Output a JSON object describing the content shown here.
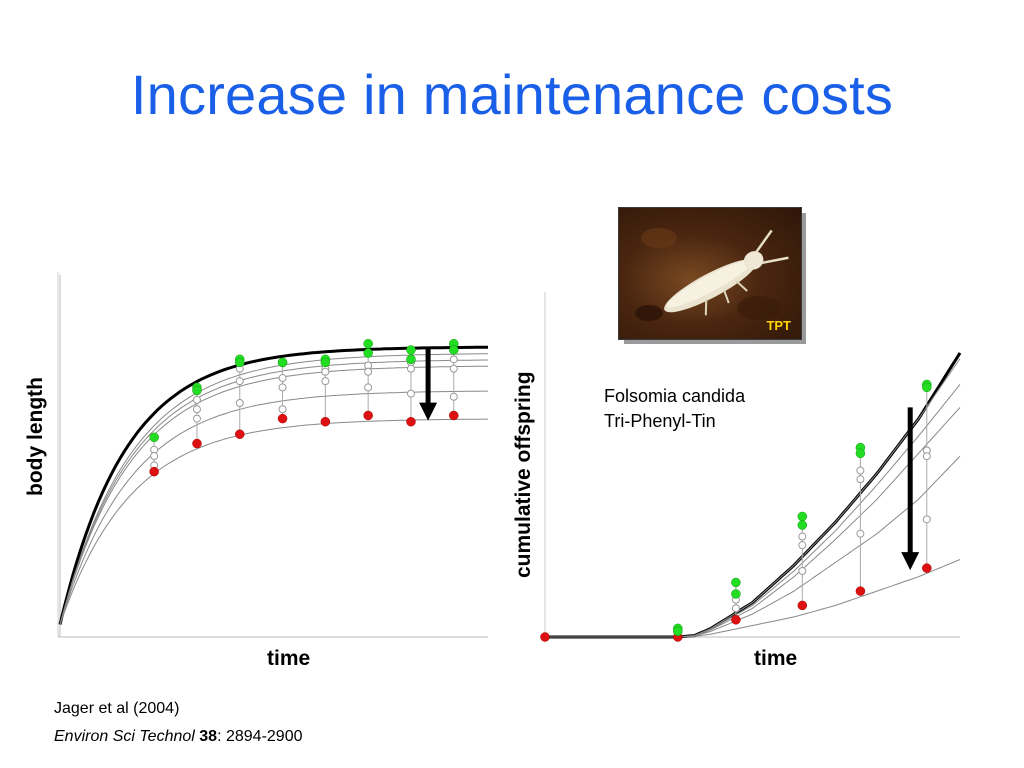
{
  "slide": {
    "title": "Increase in maintenance costs",
    "info_line1": "Folsomia candida",
    "info_line2": "Tri-Phenyl-Tin",
    "photo_label": "TPT",
    "citation_authors": "Jager et al (2004)",
    "citation_journal": "Environ Sci Technol",
    "citation_volume": "38",
    "citation_pages": ": 2894-2900",
    "colors": {
      "title": "#1a5fe8",
      "control": "#22dd22",
      "highest_dose": "#dd1111",
      "open_marker": "#ffffff"
    }
  },
  "chart_data": [
    {
      "type": "scatter",
      "xlabel": "time",
      "ylabel": "body length",
      "xlim": [
        0,
        50
      ],
      "ylim": [
        0,
        1
      ],
      "grid": false,
      "lines": [
        {
          "kind": "bold",
          "plateau": 0.93,
          "rate": 0.13
        },
        {
          "kind": "thin",
          "plateau": 0.91,
          "rate": 0.12
        },
        {
          "kind": "thin",
          "plateau": 0.89,
          "rate": 0.12
        },
        {
          "kind": "thin",
          "plateau": 0.87,
          "rate": 0.12
        },
        {
          "kind": "thin",
          "plateau": 0.79,
          "rate": 0.12
        },
        {
          "kind": "thin",
          "plateau": 0.7,
          "rate": 0.12
        }
      ],
      "points": [
        {
          "t": 11,
          "control": [
            0.64
          ],
          "open": [
            0.6,
            0.58,
            0.55
          ],
          "high": [
            0.53
          ]
        },
        {
          "t": 16,
          "control": [
            0.8,
            0.79
          ],
          "open": [
            0.76,
            0.73,
            0.7
          ],
          "high": [
            0.62
          ]
        },
        {
          "t": 21,
          "control": [
            0.89,
            0.88
          ],
          "open": [
            0.86,
            0.82,
            0.75
          ],
          "high": [
            0.65
          ]
        },
        {
          "t": 26,
          "control": [
            0.88,
            0.88
          ],
          "open": [
            0.83,
            0.8,
            0.73
          ],
          "high": [
            0.7
          ]
        },
        {
          "t": 31,
          "control": [
            0.89,
            0.88
          ],
          "open": [
            0.86,
            0.85,
            0.82
          ],
          "high": [
            0.69
          ]
        },
        {
          "t": 36,
          "control": [
            0.94,
            0.91
          ],
          "open": [
            0.87,
            0.85,
            0.8
          ],
          "high": [
            0.71
          ]
        },
        {
          "t": 41,
          "control": [
            0.92,
            0.89
          ],
          "open": [
            0.88,
            0.86,
            0.78
          ],
          "high": [
            0.69
          ]
        },
        {
          "t": 46,
          "control": [
            0.94,
            0.92
          ],
          "open": [
            0.89,
            0.86,
            0.77
          ],
          "high": [
            0.71
          ]
        }
      ],
      "arrow": {
        "t": 43,
        "from": 0.93,
        "to": 0.7
      }
    },
    {
      "type": "scatter",
      "xlabel": "time",
      "ylabel": "cumulative offspring",
      "xlim": [
        0,
        50
      ],
      "ylim": [
        0,
        1
      ],
      "grid": false,
      "lines": [
        {
          "kind": "bold",
          "x": [
            0,
            16,
            18,
            20,
            25,
            30,
            35,
            40,
            45,
            50
          ],
          "y": [
            0,
            0,
            0.005,
            0.03,
            0.12,
            0.25,
            0.4,
            0.57,
            0.76,
            0.99
          ]
        },
        {
          "kind": "thin",
          "x": [
            0,
            16,
            18,
            20,
            25,
            30,
            35,
            40,
            45,
            50
          ],
          "y": [
            0,
            0,
            0.005,
            0.03,
            0.12,
            0.25,
            0.4,
            0.57,
            0.76,
            0.97
          ]
        },
        {
          "kind": "thin",
          "x": [
            0,
            16,
            18,
            20,
            25,
            30,
            35,
            40,
            45,
            50
          ],
          "y": [
            0,
            0,
            0.005,
            0.028,
            0.11,
            0.23,
            0.37,
            0.53,
            0.7,
            0.88
          ]
        },
        {
          "kind": "thin",
          "x": [
            0,
            16,
            18,
            20,
            25,
            30,
            35,
            40,
            45,
            50
          ],
          "y": [
            0,
            0,
            0.004,
            0.025,
            0.1,
            0.21,
            0.34,
            0.48,
            0.64,
            0.8
          ]
        },
        {
          "kind": "thin",
          "x": [
            0,
            16,
            18,
            20,
            25,
            30,
            35,
            40,
            45,
            50
          ],
          "y": [
            0,
            0,
            0.003,
            0.02,
            0.08,
            0.16,
            0.26,
            0.36,
            0.48,
            0.63
          ]
        },
        {
          "kind": "thin",
          "x": [
            0,
            16,
            18,
            20,
            25,
            30,
            35,
            40,
            45,
            50
          ],
          "y": [
            0,
            0,
            0.002,
            0.01,
            0.04,
            0.07,
            0.11,
            0.16,
            0.21,
            0.27
          ]
        }
      ],
      "points": [
        {
          "t": 0,
          "control": [],
          "open": [],
          "high": [
            0.0
          ]
        },
        {
          "t": 16,
          "control": [
            0.03,
            0.02
          ],
          "open": [
            0.02
          ],
          "high": [
            0.0
          ]
        },
        {
          "t": 23,
          "control": [
            0.19,
            0.15
          ],
          "open": [
            0.13,
            0.1,
            0.06
          ],
          "high": [
            0.06
          ]
        },
        {
          "t": 31,
          "control": [
            0.42,
            0.39
          ],
          "open": [
            0.35,
            0.32,
            0.23
          ],
          "high": [
            0.11
          ]
        },
        {
          "t": 38,
          "control": [
            0.66,
            0.64
          ],
          "open": [
            0.58,
            0.55,
            0.36
          ],
          "high": [
            0.16
          ]
        },
        {
          "t": 46,
          "control": [
            0.88,
            0.87
          ],
          "open": [
            0.65,
            0.63,
            0.41
          ],
          "high": [
            0.24
          ]
        }
      ],
      "arrow": {
        "t": 44,
        "from": 0.8,
        "to": 0.24
      }
    }
  ]
}
